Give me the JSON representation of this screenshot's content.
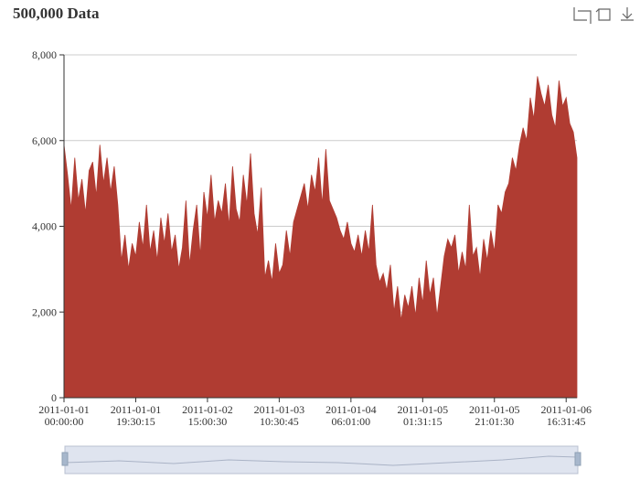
{
  "chart_data": {
    "type": "area",
    "title": "500,000 Data",
    "color": "#b03c32",
    "categories": [
      "2011-01-01 00:00:00",
      null,
      null,
      null,
      null,
      null,
      null,
      null,
      null,
      null,
      null,
      null,
      null,
      null,
      null,
      null,
      null,
      null,
      null,
      null,
      "2011-01-01 19:30:15",
      null,
      null,
      null,
      null,
      null,
      null,
      null,
      null,
      null,
      null,
      null,
      null,
      null,
      null,
      null,
      null,
      null,
      null,
      null,
      "2011-01-02 15:00:30",
      null,
      null,
      null,
      null,
      null,
      null,
      null,
      null,
      null,
      null,
      null,
      null,
      null,
      null,
      null,
      null,
      null,
      null,
      null,
      "2011-01-03 10:30:45",
      null,
      null,
      null,
      null,
      null,
      null,
      null,
      null,
      null,
      null,
      null,
      null,
      null,
      null,
      null,
      null,
      null,
      null,
      null,
      "2011-01-04 06:01:00",
      null,
      null,
      null,
      null,
      null,
      null,
      null,
      null,
      null,
      null,
      null,
      null,
      null,
      null,
      null,
      null,
      null,
      null,
      null,
      "2011-01-05 01:31:15",
      null,
      null,
      null,
      null,
      null,
      null,
      null,
      null,
      null,
      null,
      null,
      null,
      null,
      null,
      null,
      null,
      null,
      null,
      null,
      "2011-01-05 21:01:30",
      null,
      null,
      null,
      null,
      null,
      null,
      null,
      null,
      null,
      null,
      null,
      null,
      null,
      null,
      null,
      null,
      null,
      null,
      null,
      "2011-01-06 16:31:45",
      null,
      null,
      null
    ],
    "values": [
      5900,
      5200,
      4400,
      5600,
      4600,
      5100,
      4300,
      5300,
      5500,
      4700,
      5900,
      5000,
      5600,
      4800,
      5400,
      4500,
      3200,
      3800,
      3000,
      3600,
      3300,
      4100,
      3500,
      4500,
      3400,
      3900,
      3200,
      4200,
      3600,
      4300,
      3400,
      3800,
      3000,
      3500,
      4600,
      3100,
      3900,
      4500,
      3300,
      4800,
      4200,
      5200,
      4100,
      4600,
      4300,
      5000,
      4000,
      5400,
      4400,
      4100,
      5200,
      4500,
      5700,
      4300,
      3800,
      4900,
      2800,
      3200,
      2700,
      3600,
      2900,
      3100,
      3900,
      3300,
      4100,
      4400,
      4700,
      5000,
      4400,
      5200,
      4800,
      5600,
      4500,
      5800,
      4600,
      4400,
      4200,
      3900,
      3700,
      4100,
      3600,
      3400,
      3800,
      3300,
      3900,
      3400,
      4500,
      3100,
      2700,
      2900,
      2500,
      3100,
      2000,
      2600,
      1800,
      2400,
      2100,
      2600,
      1900,
      2800,
      2200,
      3200,
      2400,
      2800,
      1900,
      2600,
      3300,
      3700,
      3500,
      3800,
      2900,
      3400,
      3000,
      4500,
      3300,
      3500,
      2800,
      3700,
      3200,
      3900,
      3400,
      4500,
      4300,
      4800,
      5000,
      5600,
      5300,
      5900,
      6300,
      6000,
      7000,
      6500,
      7500,
      7100,
      6800,
      7300,
      6600,
      6300,
      7400,
      6800,
      7000,
      6400,
      6200,
      5600
    ],
    "ylim": [
      0,
      8000
    ],
    "yticks": [
      0,
      {
        "value": 2000,
        "label": "2,000"
      },
      {
        "value": 4000,
        "label": "4,000"
      },
      {
        "value": 6000,
        "label": "6,000"
      },
      {
        "value": 8000,
        "label": "8,000"
      }
    ],
    "grid": true
  }
}
